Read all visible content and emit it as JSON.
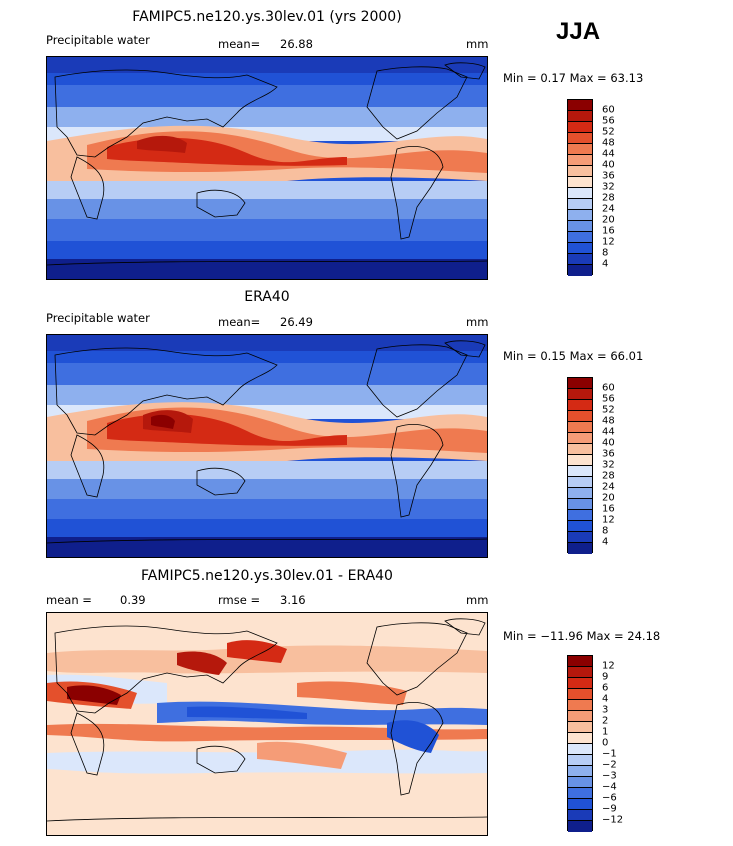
{
  "season": "JJA",
  "panels": [
    {
      "title": "FAMIPC5.ne120.ys.30lev.01 (yrs 2000)",
      "left_label": "Precipitable water",
      "stat1_label": "mean=",
      "stat1_value": "26.88",
      "stat2_label": "",
      "stat2_value": "",
      "units": "mm",
      "range_text": "Min =   0.17 Max =  63.13",
      "levels": [
        "60",
        "56",
        "52",
        "48",
        "44",
        "40",
        "36",
        "32",
        "28",
        "24",
        "20",
        "16",
        "12",
        "8",
        "4"
      ],
      "colors": [
        "#8b0000",
        "#b5180c",
        "#d42a14",
        "#e4502c",
        "#ef7a50",
        "#f59c77",
        "#f8bf9e",
        "#fde3cf",
        "#dbe7fb",
        "#b7cdf5",
        "#8eb0ee",
        "#6892e6",
        "#3f6fe0",
        "#2052d6",
        "#1a3bb8",
        "#0f1f8c"
      ]
    },
    {
      "title": "ERA40",
      "left_label": "Precipitable water",
      "stat1_label": "mean=",
      "stat1_value": "26.49",
      "stat2_label": "",
      "stat2_value": "",
      "units": "mm",
      "range_text": "Min =   0.15 Max =  66.01",
      "levels": [
        "60",
        "56",
        "52",
        "48",
        "44",
        "40",
        "36",
        "32",
        "28",
        "24",
        "20",
        "16",
        "12",
        "8",
        "4"
      ],
      "colors": [
        "#8b0000",
        "#b5180c",
        "#d42a14",
        "#e4502c",
        "#ef7a50",
        "#f59c77",
        "#f8bf9e",
        "#fde3cf",
        "#dbe7fb",
        "#b7cdf5",
        "#8eb0ee",
        "#6892e6",
        "#3f6fe0",
        "#2052d6",
        "#1a3bb8",
        "#0f1f8c"
      ]
    },
    {
      "title": "FAMIPC5.ne120.ys.30lev.01 - ERA40",
      "left_label": "mean =",
      "stat1_label": "",
      "stat1_value": "0.39",
      "stat2_label": "rmse =",
      "stat2_value": "3.16",
      "units": "mm",
      "range_text": "Min = −11.96 Max =  24.18",
      "levels": [
        "12",
        "9",
        "6",
        "4",
        "3",
        "2",
        "1",
        "0",
        "−1",
        "−2",
        "−3",
        "−4",
        "−6",
        "−9",
        "−12"
      ],
      "colors": [
        "#8b0000",
        "#b5180c",
        "#d42a14",
        "#e4502c",
        "#ef7a50",
        "#f59c77",
        "#f8bf9e",
        "#fde3cf",
        "#dbe7fb",
        "#b7cdf5",
        "#8eb0ee",
        "#6892e6",
        "#3f6fe0",
        "#2052d6",
        "#1a3bb8",
        "#0f1f8c"
      ]
    }
  ]
}
